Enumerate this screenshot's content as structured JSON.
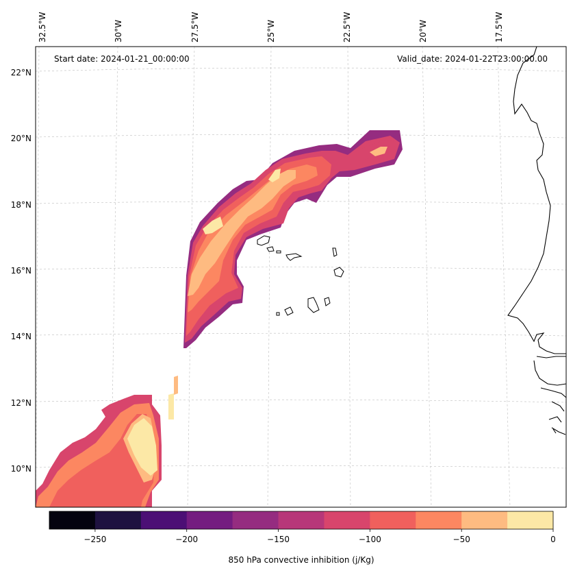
{
  "map": {
    "start_label": "Start date: 2024-01-21_00:00:00",
    "valid_label": "Valid_date: 2024-01-22T23:00:00.00",
    "lon_labels": [
      "32.5°W",
      "30°W",
      "27.5°W",
      "25°W",
      "22.5°W",
      "20°W",
      "17.5°W"
    ],
    "lat_labels": [
      "22°N",
      "20°N",
      "18°N",
      "16°N",
      "14°N",
      "12°N",
      "10°N"
    ]
  },
  "colorbar": {
    "label": "850 hPa convective inhibition (j/Kg)",
    "tick_labels": [
      "−250",
      "−200",
      "−150",
      "−100",
      "−50",
      "0"
    ],
    "levels": [
      -275,
      -250,
      -225,
      -200,
      -175,
      -150,
      -125,
      -100,
      -75,
      -50,
      -25,
      0
    ],
    "colors": [
      "#04030f",
      "#1e1240",
      "#4c0f75",
      "#741c80",
      "#952c80",
      "#b73779",
      "#d8456c",
      "#f0605d",
      "#fc8761",
      "#febb81",
      "#fce8a6"
    ]
  },
  "legend_colors": {
    "band_lt_125": "#952c80",
    "band_125_100": "#d8456c",
    "band_100_75": "#f0605d",
    "band_75_50": "#fc8761",
    "band_50_25": "#febb81",
    "band_gt_25": "#fce8a6"
  }
}
